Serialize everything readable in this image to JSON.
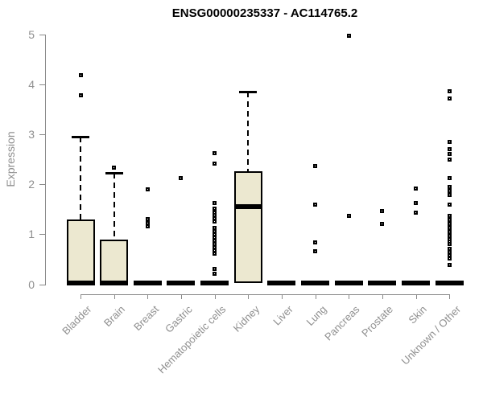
{
  "chart_data": {
    "type": "boxplot",
    "title": "ENSG00000235337 - AC114765.2",
    "ylabel": "Expression",
    "xlabel": "",
    "ylim": [
      0,
      5
    ],
    "yticks": [
      "0",
      "1",
      "2",
      "3",
      "4",
      "5"
    ],
    "grid": false,
    "legend": "none",
    "categories": [
      "Bladder",
      "Brain",
      "Breast",
      "Gastric",
      "Hematopoietic cells",
      "Kidney",
      "Liver",
      "Lung",
      "Pancreas",
      "Prostate",
      "Skin",
      "Unknown / Other"
    ],
    "flat_value": 0.02,
    "series": [
      {
        "name": "Bladder",
        "box": {
          "q1": 0,
          "median": 0.03,
          "q3": 1.3,
          "whisker_high": 2.95
        },
        "outliers": [
          4.18,
          3.78
        ]
      },
      {
        "name": "Brain",
        "box": {
          "q1": 0,
          "median": 0.03,
          "q3": 0.9,
          "whisker_high": 2.23
        },
        "outliers": [
          2.34
        ]
      },
      {
        "name": "Breast",
        "box": null,
        "outliers": [
          1.9,
          1.3,
          1.23,
          1.16
        ]
      },
      {
        "name": "Gastric",
        "box": null,
        "outliers": [
          2.12
        ]
      },
      {
        "name": "Hematopoietic cells",
        "box": null,
        "outliers": [
          2.63,
          2.41,
          1.62,
          1.51,
          1.44,
          1.38,
          1.32,
          1.25,
          1.13,
          1.07,
          1.0,
          0.94,
          0.87,
          0.81,
          0.74,
          0.68,
          0.61,
          0.31,
          0.21
        ]
      },
      {
        "name": "Kidney",
        "box": {
          "q1": 0.02,
          "median": 1.56,
          "q3": 2.26,
          "whisker_high": 3.86
        },
        "outliers": []
      },
      {
        "name": "Liver",
        "box": null,
        "outliers": []
      },
      {
        "name": "Lung",
        "box": null,
        "outliers": [
          2.37,
          1.59,
          0.84,
          0.66
        ]
      },
      {
        "name": "Pancreas",
        "box": null,
        "outliers": [
          4.98,
          1.37
        ]
      },
      {
        "name": "Prostate",
        "box": null,
        "outliers": [
          1.46,
          1.2
        ]
      },
      {
        "name": "Skin",
        "box": null,
        "outliers": [
          1.92,
          1.63,
          1.43
        ]
      },
      {
        "name": "Unknown / Other",
        "box": null,
        "outliers": [
          3.86,
          3.72,
          2.85,
          2.7,
          2.61,
          2.5,
          2.12,
          1.95,
          1.86,
          1.78,
          1.59,
          1.37,
          1.29,
          1.21,
          1.13,
          1.05,
          0.97,
          0.9,
          0.86,
          0.8,
          0.71,
          0.65,
          0.58,
          0.51,
          0.38
        ]
      }
    ],
    "colors": {
      "box_fill": "#ece8d0",
      "box_border": "#000000",
      "median": "#000000",
      "whisker": "#000000",
      "outlier": "#000000",
      "axis": "#8a8a8a",
      "tick_label": "#8f8f8f",
      "title": "#000000",
      "background": "#ffffff"
    }
  }
}
